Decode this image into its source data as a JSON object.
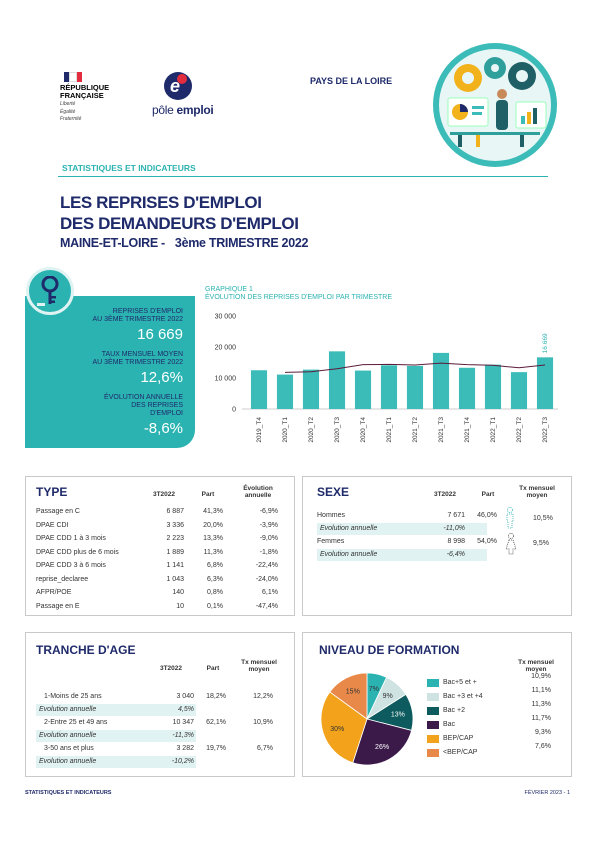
{
  "header": {
    "republique": [
      "RÉPUBLIQUE",
      "FRANÇAISE"
    ],
    "motto": [
      "Liberté",
      "Égalité",
      "Fraternité"
    ],
    "pole_emploi_a": "pôle",
    "pole_emploi_b": "emploi",
    "region": "PAYS DE LA LOIRE",
    "section": "STATISTIQUES ET INDICATEURS"
  },
  "title": {
    "line1": "LES REPRISES D'EMPLOI",
    "line2": "DES DEMANDEURS D'EMPLOI",
    "dept": "MAINE-ET-LOIRE -",
    "period": "3ème TRIMESTRE 2022"
  },
  "kpi": {
    "reprises_label": "REPRISES D'EMPLOI",
    "reprises_label2": "AU 3ème TRIMESTRE 2022",
    "reprises_value": "16 669",
    "taux_label": "TAUX MENSUEL MOYEN",
    "taux_label2": "AU 3ème TRIMESTRE 2022",
    "taux_value": "12,6%",
    "evo_label": "ÉVOLUTION ANNUELLE",
    "evo_label2": "DES REPRISES",
    "evo_label3": "D'EMPLOI",
    "evo_value": "-8,6%"
  },
  "chart_data": {
    "type": "bar",
    "title_line1": "GRAPHIQUE 1",
    "title_line2": "ÉVOLUTION DES REPRISES D'EMPLOI PAR TRIMESTRE",
    "categories": [
      "2019_T4",
      "2020_T1",
      "2020_T2",
      "2020_T3",
      "2020_T4",
      "2021_T1",
      "2021_T2",
      "2021_T3",
      "2021_T4",
      "2022_T1",
      "2022_T2",
      "2022_T3"
    ],
    "values": [
      12500,
      11100,
      12700,
      18600,
      12400,
      14100,
      13900,
      18100,
      13300,
      14300,
      11900,
      16669
    ],
    "line": [
      null,
      11800,
      12000,
      13000,
      14300,
      14400,
      14200,
      14800,
      14300,
      14100,
      13300,
      14200
    ],
    "last_label": "16 669",
    "yticks": [
      "0",
      "10 000",
      "20 000",
      "30 000"
    ],
    "ylim": [
      0,
      30000
    ],
    "colors": {
      "bar": "#3cbcb8",
      "line": "#5b1b3a"
    }
  },
  "type_box": {
    "title": "TYPE",
    "h1": "3T2022",
    "h2": "Part",
    "h3a": "Évolution",
    "h3b": "annuelle",
    "rows": [
      [
        "Passage en C",
        "6 887",
        "41,3%",
        "-6,9%"
      ],
      [
        "DPAE CDI",
        "3 336",
        "20,0%",
        "-3,9%"
      ],
      [
        "DPAE CDD 1 à 3 mois",
        "2 223",
        "13,3%",
        "-9,0%"
      ],
      [
        "DPAE CDD plus de 6 mois",
        "1 889",
        "11,3%",
        "-1,8%"
      ],
      [
        "DPAE CDD 3 à 6 mois",
        "1 141",
        "6,8%",
        "-22,4%"
      ],
      [
        "reprise_declaree",
        "1 043",
        "6,3%",
        "-24,0%"
      ],
      [
        "AFPR/POE",
        "140",
        "0,8%",
        "6,1%"
      ],
      [
        "Passage en E",
        "10",
        "0,1%",
        "-47,4%"
      ]
    ]
  },
  "sexe_box": {
    "title": "SEXE",
    "h1": "3T2022",
    "h2": "Part",
    "h3a": "Tx mensuel",
    "h3b": "moyen",
    "hommes": [
      "Hommes",
      "7 671",
      "46,0%",
      "10,5%"
    ],
    "hommes_evo": [
      "Evolution annuelle",
      "-11,0%"
    ],
    "femmes": [
      "Femmes",
      "8 998",
      "54,0%",
      "9,5%"
    ],
    "femmes_evo": [
      "Evolution annuelle",
      "-6,4%"
    ]
  },
  "age_box": {
    "title": "TRANCHE D'AGE",
    "h1": "3T2022",
    "h2": "Part",
    "h3a": "Tx mensuel",
    "h3b": "moyen",
    "r1": [
      "1-Moins de 25 ans",
      "3 040",
      "18,2%",
      "12,2%"
    ],
    "r1_evo": [
      "Evolution annuelle",
      "4,5%"
    ],
    "r2": [
      "2-Entre 25 et 49 ans",
      "10 347",
      "62,1%",
      "10,9%"
    ],
    "r2_evo": [
      "Evolution annuelle",
      "-11,3%"
    ],
    "r3": [
      "3-50 ans et plus",
      "3 282",
      "19,7%",
      "6,7%"
    ],
    "r3_evo": [
      "Evolution annuelle",
      "-10,2%"
    ]
  },
  "formation_box": {
    "title": "NIVEAU DE FORMATION",
    "h3a": "Tx mensuel",
    "h3b": "moyen",
    "slices": [
      {
        "label": "Bac+5 et +",
        "pct": 7,
        "pct_label": "7%",
        "rate": "10,9%",
        "color": "#2bb3b1"
      },
      {
        "label": "Bac +3 et +4",
        "pct": 9,
        "pct_label": "9%",
        "rate": "11,1%",
        "color": "#cfe3e3"
      },
      {
        "label": "Bac +2",
        "pct": 13,
        "pct_label": "13%",
        "rate": "11,3%",
        "color": "#0d5b5e"
      },
      {
        "label": "Bac",
        "pct": 26,
        "pct_label": "26%",
        "rate": "11,7%",
        "color": "#3b1a4a"
      },
      {
        "label": "BEP/CAP",
        "pct": 30,
        "pct_label": "30%",
        "rate": "9,3%",
        "color": "#f2a31b"
      },
      {
        "label": "<BEP/CAP",
        "pct": 15,
        "pct_label": "15%",
        "rate": "7,6%",
        "color": "#e8894a"
      }
    ]
  },
  "footer": {
    "left": "STATISTIQUES ET INDICATEURS",
    "right": "FÉVRIER 2023 - 1"
  }
}
